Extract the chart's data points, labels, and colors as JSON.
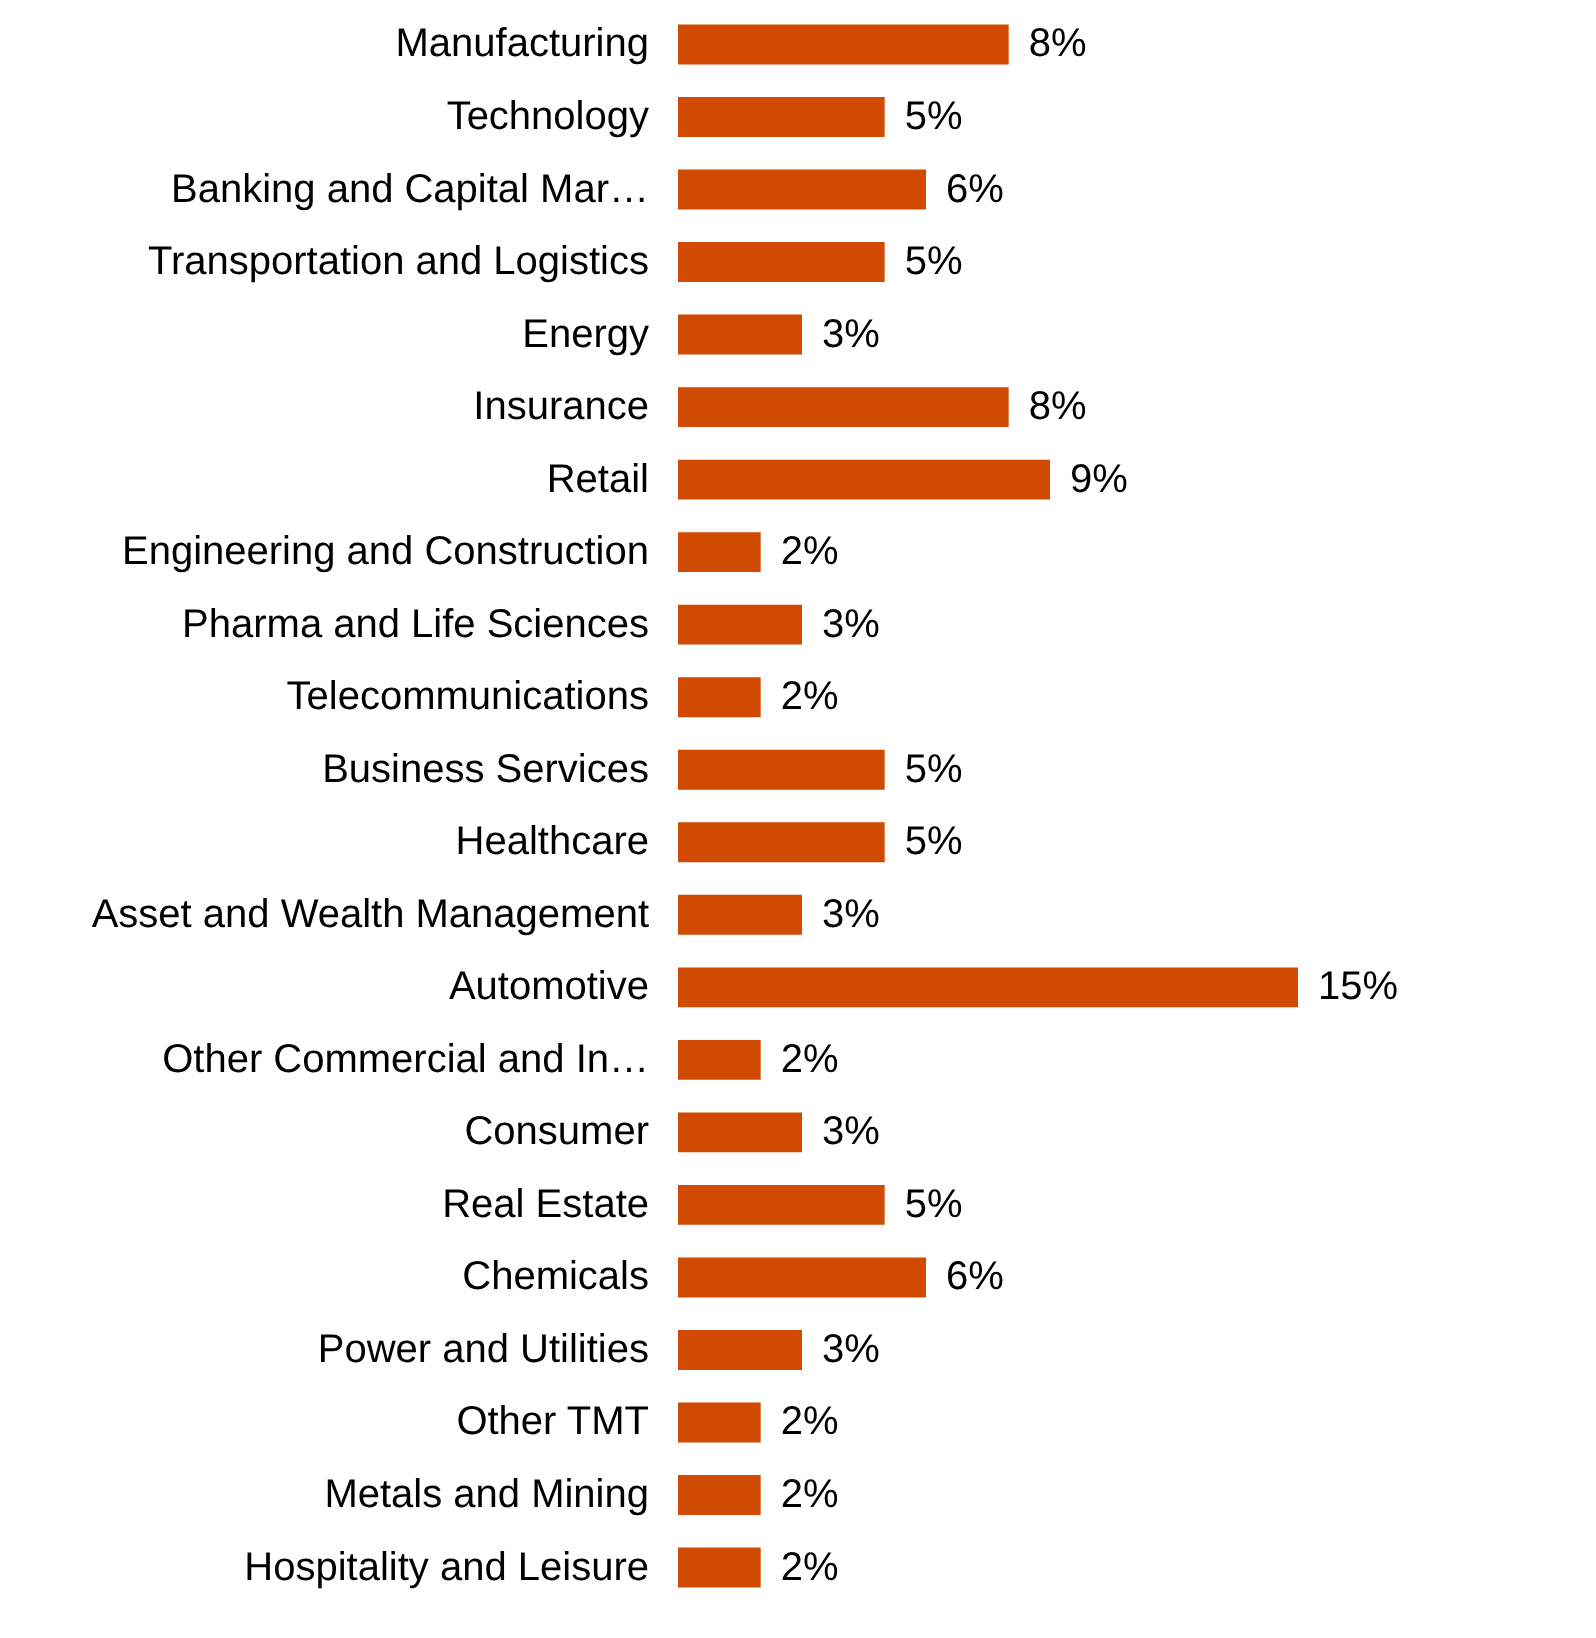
{
  "chart_data": {
    "type": "bar",
    "orientation": "horizontal",
    "categories": [
      "Manufacturing",
      "Technology",
      "Banking and Capital Mar…",
      "Transportation and Logistics",
      "Energy",
      "Insurance",
      "Retail",
      "Engineering and Construction",
      "Pharma and Life Sciences",
      "Telecommunications",
      "Business Services",
      "Healthcare",
      "Asset and Wealth Management",
      "Automotive",
      "Other Commercial and In…",
      "Consumer",
      "Real Estate",
      "Chemicals",
      "Power and Utilities",
      "Other TMT",
      "Metals and Mining",
      "Hospitality and Leisure"
    ],
    "values": [
      8,
      5,
      6,
      5,
      3,
      8,
      9,
      2,
      3,
      2,
      5,
      5,
      3,
      15,
      2,
      3,
      5,
      6,
      3,
      2,
      2,
      2
    ],
    "value_labels": [
      "8%",
      "5%",
      "6%",
      "5%",
      "3%",
      "8%",
      "9%",
      "2%",
      "3%",
      "2%",
      "5%",
      "5%",
      "3%",
      "15%",
      "2%",
      "3%",
      "5%",
      "6%",
      "3%",
      "2%",
      "2%",
      "2%"
    ],
    "color": "#d04a02",
    "grid": false,
    "tick_labels": "y"
  }
}
